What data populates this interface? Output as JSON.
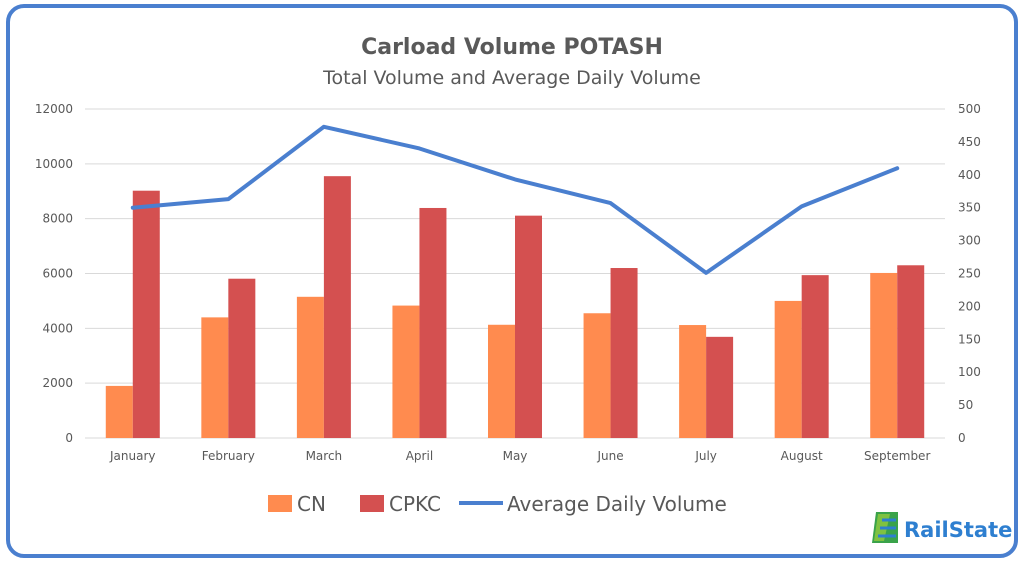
{
  "chart_data": {
    "type": "bar",
    "title": "Carload Volume POTASH",
    "subtitle": "Total Volume and Average Daily Volume",
    "categories": [
      "January",
      "February",
      "March",
      "April",
      "May",
      "June",
      "July",
      "August",
      "September"
    ],
    "series": [
      {
        "name": "CN",
        "type": "bar",
        "axis": "left",
        "color": "#ff8b4f",
        "values": [
          1900,
          4400,
          5150,
          4830,
          4130,
          4550,
          4120,
          5000,
          6020
        ]
      },
      {
        "name": "CPKC",
        "type": "bar",
        "axis": "left",
        "color": "#d45050",
        "values": [
          9020,
          5810,
          9550,
          8390,
          8110,
          6200,
          3690,
          5940,
          6300
        ]
      },
      {
        "name": "Average Daily Volume",
        "type": "line",
        "axis": "right",
        "color": "#4a7fcf",
        "values": [
          350,
          363,
          473,
          440,
          393,
          357,
          251,
          352,
          410
        ]
      }
    ],
    "y_left": {
      "min": 0,
      "max": 12000,
      "ticks": [
        "0",
        "2000",
        "4000",
        "6000",
        "8000",
        "10000",
        "12000"
      ]
    },
    "y_right": {
      "min": 0,
      "max": 500,
      "ticks": [
        "0",
        "50",
        "100",
        "150",
        "200",
        "250",
        "300",
        "350",
        "400",
        "450",
        "500"
      ]
    },
    "grid": true,
    "legend_position": "bottom"
  },
  "logo": {
    "text": "RailState",
    "icon": "railstate-logo-icon"
  }
}
